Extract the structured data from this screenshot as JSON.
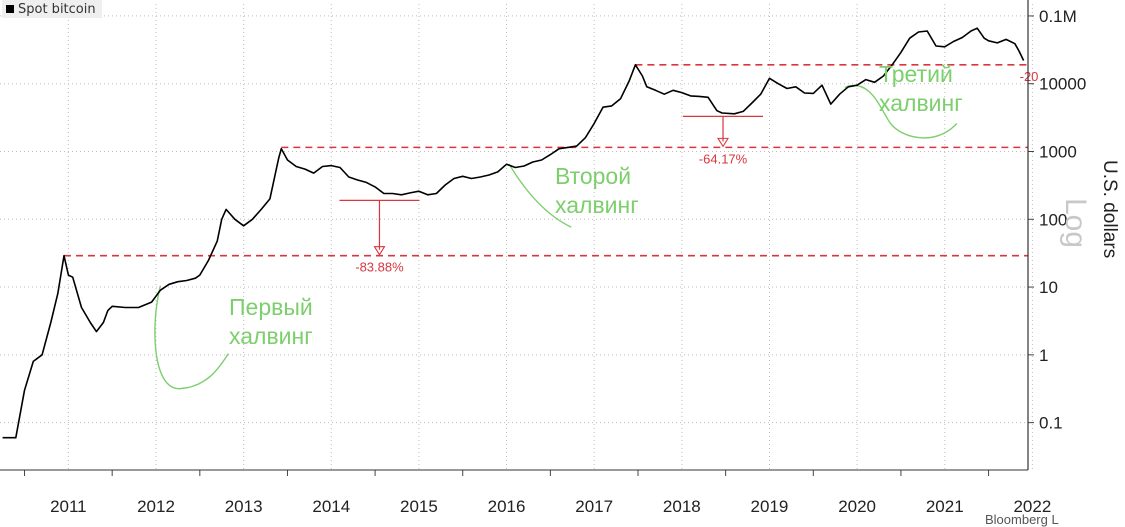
{
  "legend": {
    "label": "Spot bitcoin"
  },
  "source": "Bloomberg L",
  "chart_data": {
    "type": "line",
    "series": [
      {
        "name": "Spot bitcoin",
        "x": [
          2010.75,
          2010.9,
          2011.0,
          2011.1,
          2011.2,
          2011.3,
          2011.38,
          2011.45,
          2011.5,
          2011.55,
          2011.65,
          2011.75,
          2011.82,
          2011.9,
          2011.95,
          2012.0,
          2012.15,
          2012.3,
          2012.45,
          2012.55,
          2012.65,
          2012.75,
          2012.85,
          2012.95,
          2013.0,
          2013.1,
          2013.2,
          2013.25,
          2013.3,
          2013.4,
          2013.5,
          2013.6,
          2013.7,
          2013.8,
          2013.9,
          2013.93,
          2014.0,
          2014.1,
          2014.2,
          2014.3,
          2014.4,
          2014.5,
          2014.6,
          2014.7,
          2014.8,
          2014.9,
          2015.0,
          2015.1,
          2015.2,
          2015.3,
          2015.4,
          2015.5,
          2015.6,
          2015.7,
          2015.8,
          2015.9,
          2016.0,
          2016.1,
          2016.2,
          2016.3,
          2016.4,
          2016.5,
          2016.6,
          2016.7,
          2016.8,
          2016.9,
          2017.0,
          2017.1,
          2017.2,
          2017.3,
          2017.4,
          2017.5,
          2017.6,
          2017.7,
          2017.8,
          2017.9,
          2017.97,
          2018.05,
          2018.1,
          2018.2,
          2018.3,
          2018.4,
          2018.5,
          2018.6,
          2018.7,
          2018.8,
          2018.9,
          2018.96,
          2019.1,
          2019.2,
          2019.3,
          2019.4,
          2019.5,
          2019.6,
          2019.7,
          2019.8,
          2019.9,
          2020.0,
          2020.1,
          2020.2,
          2020.3,
          2020.4,
          2020.5,
          2020.6,
          2020.7,
          2020.8,
          2020.9,
          2021.0,
          2021.1,
          2021.2,
          2021.3,
          2021.4,
          2021.5,
          2021.6,
          2021.7,
          2021.8,
          2021.87,
          2021.95,
          2022.0,
          2022.1,
          2022.2,
          2022.3,
          2022.35,
          2022.4
        ],
        "y": [
          0.06,
          0.06,
          0.3,
          0.8,
          1.0,
          3.0,
          8.0,
          29.0,
          15.0,
          14.0,
          5.0,
          3.0,
          2.2,
          3.0,
          4.5,
          5.2,
          5.0,
          5.0,
          6.0,
          9.0,
          11.0,
          12.0,
          12.5,
          13.5,
          15.0,
          25.0,
          48.0,
          100.0,
          140.0,
          100.0,
          80.0,
          100.0,
          140.0,
          200.0,
          800.0,
          1100.0,
          750.0,
          600.0,
          550.0,
          480.0,
          600.0,
          620.0,
          580.0,
          420.0,
          380.0,
          350.0,
          300.0,
          240.0,
          240.0,
          230.0,
          245.0,
          260.0,
          230.0,
          240.0,
          320.0,
          400.0,
          430.0,
          400.0,
          420.0,
          450.0,
          500.0,
          650.0,
          580.0,
          610.0,
          700.0,
          750.0,
          900.0,
          1100.0,
          1150.0,
          1200.0,
          1600.0,
          2600.0,
          4500.0,
          4700.0,
          6000.0,
          11000.0,
          19000.0,
          13000.0,
          9000.0,
          8000.0,
          7000.0,
          8000.0,
          7400.0,
          6600.0,
          6500.0,
          6300.0,
          4000.0,
          3700.0,
          3600.0,
          3900.0,
          5200.0,
          7000.0,
          12000.0,
          10000.0,
          8500.0,
          9000.0,
          7300.0,
          7200.0,
          9500.0,
          5000.0,
          7000.0,
          9000.0,
          9500.0,
          11500.0,
          10500.0,
          13000.0,
          19000.0,
          29000.0,
          47000.0,
          58000.0,
          60000.0,
          36000.0,
          35000.0,
          42000.0,
          48000.0,
          60000.0,
          66000.0,
          47000.0,
          43000.0,
          40000.0,
          45000.0,
          39000.0,
          30000.0,
          22000.0
        ]
      }
    ],
    "ylim": [
      0.02,
      150000
    ],
    "xlim": [
      2010.72,
      2022.45
    ],
    "yscale": "log",
    "ylabel": "U.S. dollars",
    "y_ticks": [
      {
        "value": 0.1,
        "label": "0.1"
      },
      {
        "value": 1,
        "label": "1"
      },
      {
        "value": 10,
        "label": "10"
      },
      {
        "value": 100,
        "label": "100"
      },
      {
        "value": 1000,
        "label": "1000"
      },
      {
        "value": 10000,
        "label": "10000"
      },
      {
        "value": 100000,
        "label": "0.1M"
      }
    ],
    "x_ticks": [
      {
        "value": 2011,
        "label": "2011"
      },
      {
        "value": 2012,
        "label": "2012"
      },
      {
        "value": 2013,
        "label": "2013"
      },
      {
        "value": 2014,
        "label": "2014"
      },
      {
        "value": 2015,
        "label": "2015"
      },
      {
        "value": 2016,
        "label": "2016"
      },
      {
        "value": 2017,
        "label": "2017"
      },
      {
        "value": 2018,
        "label": "2018"
      },
      {
        "value": 2019,
        "label": "2019"
      },
      {
        "value": 2020,
        "label": "2020"
      },
      {
        "value": 2021,
        "label": "2021"
      },
      {
        "value": 2022,
        "label": "2022"
      }
    ],
    "watermark": "Log",
    "reference_lines": [
      {
        "y": 29,
        "x_from": 2011.45,
        "x_to": 2022.45
      },
      {
        "y": 1150,
        "x_from": 2013.93,
        "x_to": 2022.45
      },
      {
        "y": 19000,
        "x_from": 2017.97,
        "x_to": 2022.45
      }
    ],
    "drawdowns": [
      {
        "x": 2015.05,
        "from": 190,
        "to": 29,
        "label": "-83.88%"
      },
      {
        "x": 2018.97,
        "from": 3300,
        "to": 1150,
        "label": "-64.17%"
      },
      {
        "x": 2022.4,
        "from": 19000,
        "to": 19000,
        "label": "-20"
      }
    ],
    "annotations": [
      {
        "lines": [
          "Первый",
          "халвинг"
        ],
        "x": 2012.55,
        "y": 10.5
      },
      {
        "lines": [
          "Второй",
          "халвинг"
        ],
        "x": 2016.53,
        "y": 650
      },
      {
        "lines": [
          "Третий",
          "халвинг"
        ],
        "x": 2020.36,
        "y": 8800
      }
    ],
    "grid": "y-dotted",
    "colors": {
      "line": "#000000",
      "reference": "#d9363e",
      "annotation": "#7ccf6c",
      "drawdown_label": "#d9363e"
    }
  }
}
